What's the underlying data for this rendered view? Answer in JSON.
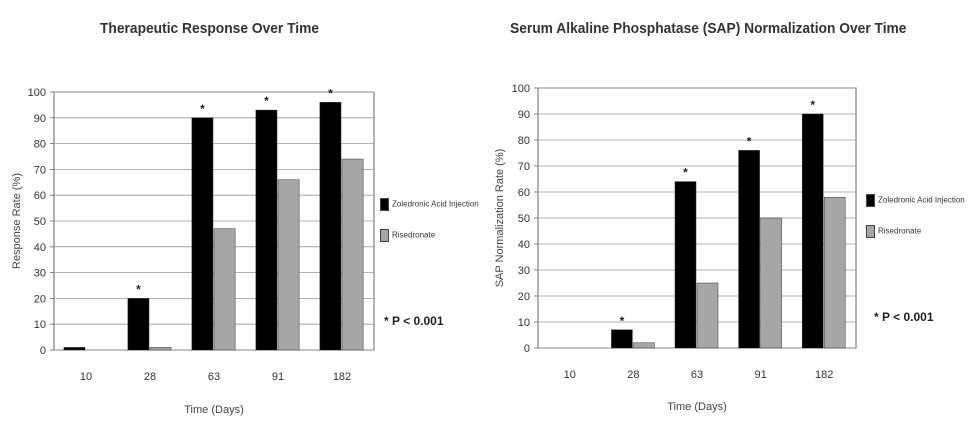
{
  "charts": [
    {
      "title": "Therapeutic Response Over Time",
      "legend": [
        "Zoledronic Acid Injection",
        "Risedronate"
      ],
      "note": "* P < 0.001",
      "colors": {
        "series1": "#000000",
        "series2": "#a6a6a6",
        "plot_bg": "#ffffff",
        "grid": "#999999"
      }
    },
    {
      "title": "Serum Alkaline Phosphatase (SAP) Normalization Over Time",
      "legend": [
        "Zoledronic Acid Injection",
        "Risedronate"
      ],
      "note": "* P < 0.001",
      "colors": {
        "series1": "#000000",
        "series2": "#a6a6a6",
        "plot_bg": "#ffffff",
        "grid": "#999999"
      }
    }
  ],
  "chart_data": [
    {
      "type": "bar",
      "title": "Therapeutic Response Over Time",
      "xlabel": "Time (Days)",
      "ylabel": "Response Rate (%)",
      "categories": [
        "10",
        "28",
        "63",
        "91",
        "182"
      ],
      "series": [
        {
          "name": "Zoledronic Acid Injection",
          "values": [
            1,
            20,
            90,
            93,
            96
          ]
        },
        {
          "name": "Risedronate",
          "values": [
            0,
            1,
            47,
            66,
            74
          ]
        }
      ],
      "ylim": [
        0,
        100
      ],
      "yticks": [
        0,
        10,
        20,
        30,
        40,
        50,
        60,
        70,
        80,
        90,
        100
      ],
      "significance_markers": [
        "28",
        "63",
        "91",
        "182"
      ],
      "marker_symbol": "*",
      "grid": true,
      "legend_position": "right"
    },
    {
      "type": "bar",
      "title": "Serum Alkaline Phosphatase (SAP) Normalization Over Time",
      "xlabel": "Time (Days)",
      "ylabel": "SAP Normalization Rate (%)",
      "categories": [
        "10",
        "28",
        "63",
        "91",
        "182"
      ],
      "series": [
        {
          "name": "Zoledronic Acid Injection",
          "values": [
            0,
            7,
            64,
            76,
            90
          ]
        },
        {
          "name": "Risedronate",
          "values": [
            0,
            2,
            25,
            50,
            58
          ]
        }
      ],
      "ylim": [
        0,
        100
      ],
      "yticks": [
        0,
        10,
        20,
        30,
        40,
        50,
        60,
        70,
        80,
        90,
        100
      ],
      "significance_markers": [
        "28",
        "63",
        "91",
        "182"
      ],
      "marker_symbol": "*",
      "grid": true,
      "legend_position": "right"
    }
  ]
}
